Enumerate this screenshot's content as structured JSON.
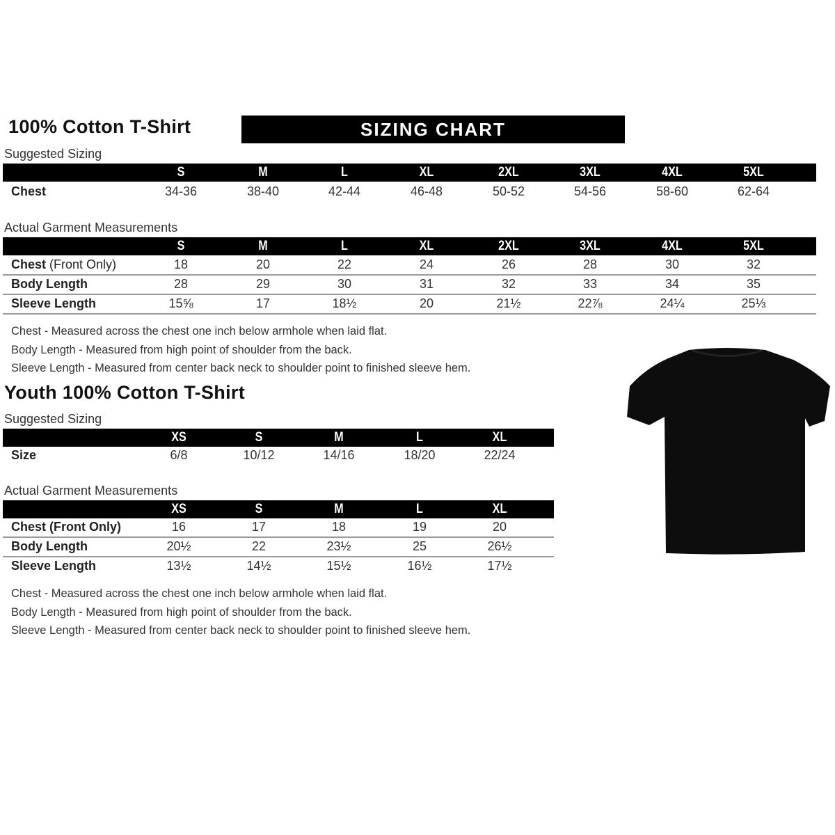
{
  "adult": {
    "title": "100% Cotton T-Shirt",
    "banner": "SIZING CHART",
    "suggested": {
      "label": "Suggested Sizing",
      "sizes": [
        "S",
        "M",
        "L",
        "XL",
        "2XL",
        "3XL",
        "4XL",
        "5XL"
      ],
      "rows": [
        {
          "label": "Chest",
          "values": [
            "34-36",
            "38-40",
            "42-44",
            "46-48",
            "50-52",
            "54-56",
            "58-60",
            "62-64"
          ]
        }
      ]
    },
    "actual": {
      "label": "Actual Garment Measurements",
      "sizes": [
        "S",
        "M",
        "L",
        "XL",
        "2XL",
        "3XL",
        "4XL",
        "5XL"
      ],
      "rows": [
        {
          "label": "Chest",
          "label_suffix": " (Front Only)",
          "values": [
            "18",
            "20",
            "22",
            "24",
            "26",
            "28",
            "30",
            "32"
          ]
        },
        {
          "label": "Body Length",
          "values": [
            "28",
            "29",
            "30",
            "31",
            "32",
            "33",
            "34",
            "35"
          ]
        },
        {
          "label": "Sleeve Length",
          "values": [
            "15⅝",
            "17",
            "18½",
            "20",
            "21½",
            "22⅞",
            "24¼",
            "25⅓"
          ]
        }
      ]
    },
    "notes": [
      "Chest - Measured across the chest one inch below armhole when laid flat.",
      "Body Length - Measured from high point of shoulder from the back.",
      "Sleeve Length - Measured from center back neck to shoulder point to finished sleeve hem."
    ]
  },
  "youth": {
    "title": "Youth 100% Cotton T-Shirt",
    "suggested": {
      "label": "Suggested Sizing",
      "sizes": [
        "XS",
        "S",
        "M",
        "L",
        "XL"
      ],
      "rows": [
        {
          "label": "Size",
          "values": [
            "6/8",
            "10/12",
            "14/16",
            "18/20",
            "22/24"
          ]
        }
      ]
    },
    "actual": {
      "label": "Actual Garment Measurements",
      "sizes": [
        "XS",
        "S",
        "M",
        "L",
        "XL"
      ],
      "rows": [
        {
          "label": "Chest (Front Only)",
          "values": [
            "16",
            "17",
            "18",
            "19",
            "20"
          ]
        },
        {
          "label": "Body Length",
          "values": [
            "20½",
            "22",
            "23½",
            "25",
            "26½"
          ]
        },
        {
          "label": "Sleeve Length",
          "values": [
            "13½",
            "14½",
            "15½",
            "16½",
            "17½"
          ]
        }
      ]
    },
    "notes": [
      "Chest - Measured across the chest one inch below armhole when laid flat.",
      "Body Length - Measured from high point of shoulder from the back.",
      "Sleeve Length - Measured from center back neck to shoulder point to finished sleeve hem."
    ]
  },
  "image": {
    "name": "black-t-shirt",
    "color": "#0d0d0d"
  }
}
